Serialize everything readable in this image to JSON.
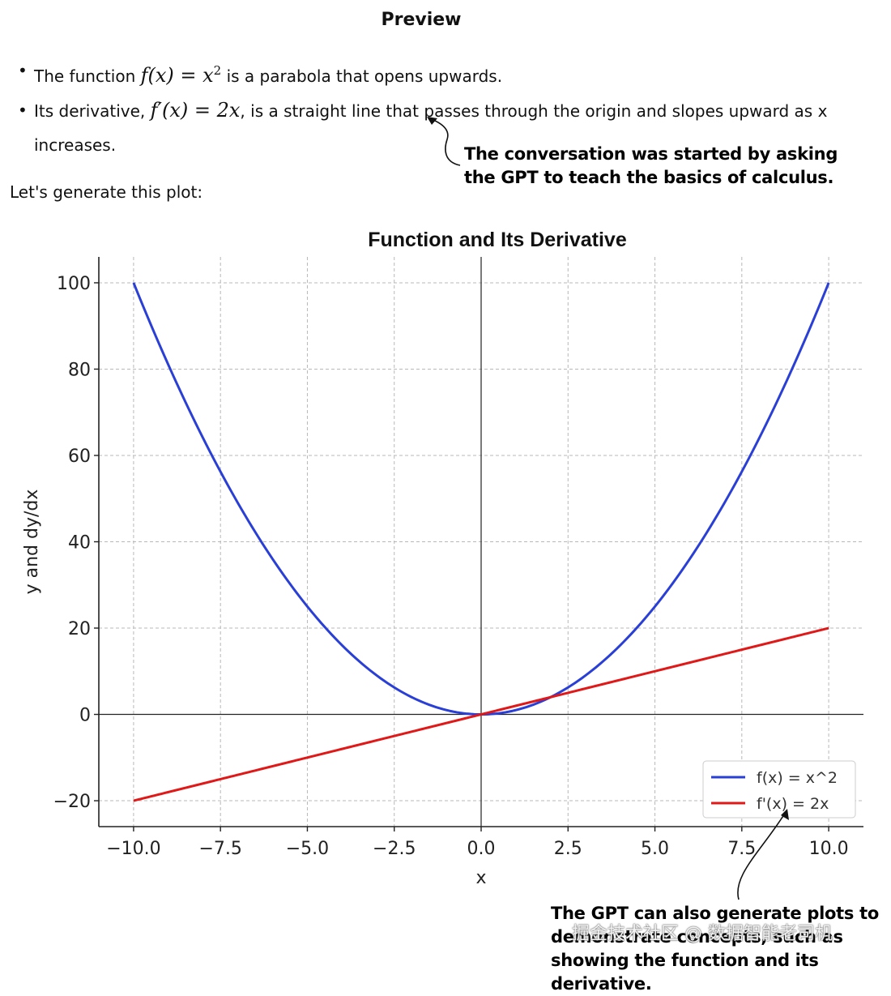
{
  "preview": {
    "title": "Preview"
  },
  "bullets": [
    {
      "before": "The function ",
      "math": "f(x) = x",
      "sup": "2",
      "after": " is a parabola that opens upwards."
    },
    {
      "before": "Its derivative, ",
      "math": "f′(x) = 2x",
      "after": ", is a straight line that passes through the origin and slopes upward as x increases."
    }
  ],
  "lets_generate": "Let's generate this plot:",
  "annotations": {
    "top": "The conversation was started by asking the GPT to teach the basics of calculus.",
    "bottom": "The GPT can also generate plots to demonstrate concepts, such as showing the function and its derivative."
  },
  "watermark": "掘金技术社区 @ 数据智能老司机",
  "chart_data": {
    "type": "line",
    "title": "Function and Its Derivative",
    "xlabel": "x",
    "ylabel": "y and dy/dx",
    "xlim": [
      -11,
      11
    ],
    "ylim": [
      -26,
      106
    ],
    "xticks": [
      -10.0,
      -7.5,
      -5.0,
      -2.5,
      0.0,
      2.5,
      5.0,
      7.5,
      10.0
    ],
    "xtick_labels": [
      "−10.0",
      "−7.5",
      "−5.0",
      "−2.5",
      "0.0",
      "2.5",
      "5.0",
      "7.5",
      "10.0"
    ],
    "yticks": [
      -20,
      0,
      20,
      40,
      60,
      80,
      100
    ],
    "ytick_labels": [
      "−20",
      "0",
      "20",
      "40",
      "60",
      "80",
      "100"
    ],
    "grid": true,
    "legend_position": "lower-right",
    "series": [
      {
        "name": "f(x) = x^2",
        "color": "#2a3fd6",
        "function": "x^2",
        "x_range": [
          -10,
          10
        ]
      },
      {
        "name": "f'(x) = 2x",
        "color": "#e01818",
        "function": "2x",
        "x_range": [
          -10,
          10
        ]
      }
    ]
  }
}
